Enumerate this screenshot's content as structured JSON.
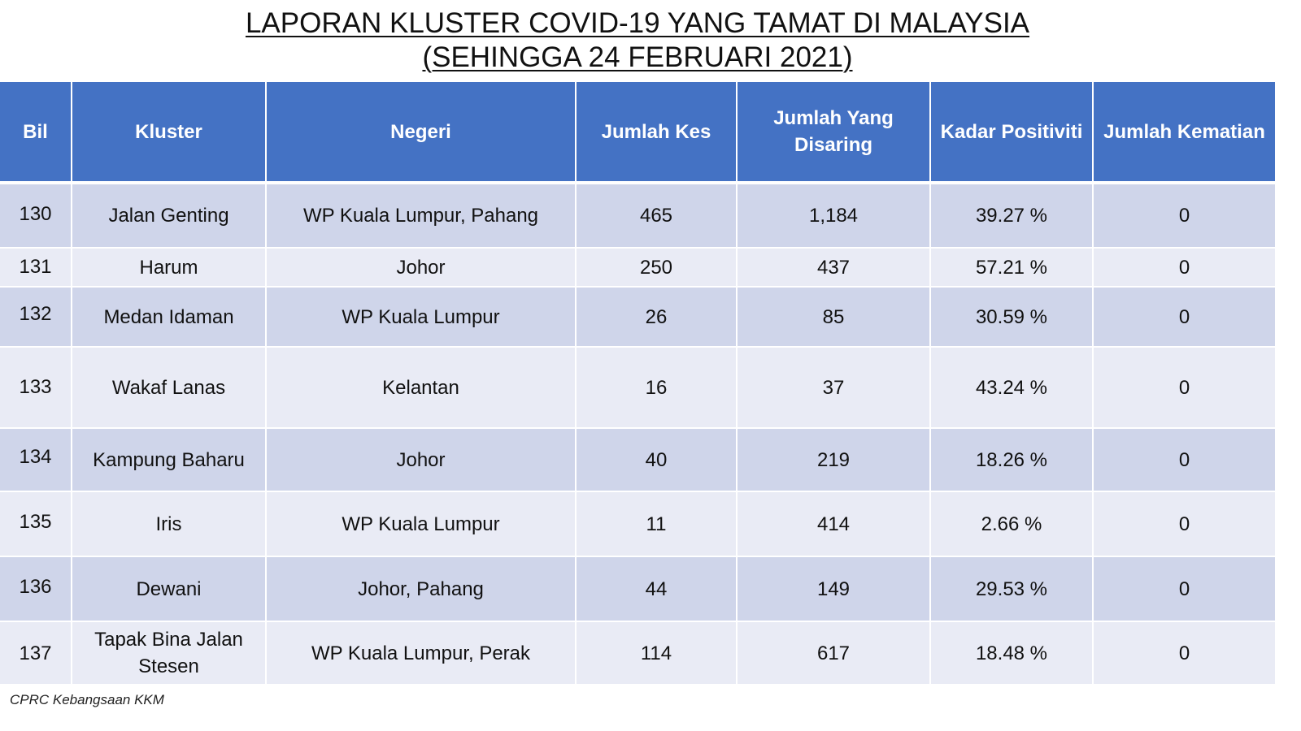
{
  "title_line1": "LAPORAN KLUSTER COVID-19 YANG TAMAT DI MALAYSIA",
  "title_line2": "(SEHINGGA  24 FEBRUARI 2021)",
  "headers": {
    "bil": "Bil",
    "kluster": "Kluster",
    "negeri": "Negeri",
    "jumlah_kes": "Jumlah Kes",
    "jumlah_disaring": "Jumlah Yang Disaring",
    "kadar_positiviti": "Kadar Positiviti",
    "jumlah_kematian": "Jumlah Kematian"
  },
  "rows": [
    {
      "bil": "130",
      "kluster": "Jalan Genting",
      "negeri": "WP Kuala Lumpur, Pahang",
      "kes": "465",
      "disaring": "1,184",
      "positiviti": "39.27 %",
      "kematian": "0"
    },
    {
      "bil": "131",
      "kluster": "Harum",
      "negeri": "Johor",
      "kes": "250",
      "disaring": "437",
      "positiviti": "57.21 %",
      "kematian": "0"
    },
    {
      "bil": "132",
      "kluster": "Medan Idaman",
      "negeri": "WP Kuala Lumpur",
      "kes": "26",
      "disaring": "85",
      "positiviti": "30.59 %",
      "kematian": "0"
    },
    {
      "bil": "133",
      "kluster": "Wakaf Lanas",
      "negeri": "Kelantan",
      "kes": "16",
      "disaring": "37",
      "positiviti": "43.24 %",
      "kematian": "0"
    },
    {
      "bil": "134",
      "kluster": "Kampung Baharu",
      "negeri": "Johor",
      "kes": "40",
      "disaring": "219",
      "positiviti": "18.26 %",
      "kematian": "0"
    },
    {
      "bil": "135",
      "kluster": "Iris",
      "negeri": "WP Kuala Lumpur",
      "kes": "11",
      "disaring": "414",
      "positiviti": "2.66 %",
      "kematian": "0"
    },
    {
      "bil": "136",
      "kluster": "Dewani",
      "negeri": "Johor, Pahang",
      "kes": "44",
      "disaring": "149",
      "positiviti": "29.53 %",
      "kematian": "0"
    },
    {
      "bil": "137",
      "kluster": "Tapak Bina Jalan Stesen",
      "negeri": "WP Kuala Lumpur, Perak",
      "kes": "114",
      "disaring": "617",
      "positiviti": "18.48 %",
      "kematian": "0"
    }
  ],
  "footer": "CPRC Kebangsaan KKM",
  "colors": {
    "header_bg": "#4472c4",
    "row_dark": "#cfd5ea",
    "row_light": "#e9ebf5"
  }
}
